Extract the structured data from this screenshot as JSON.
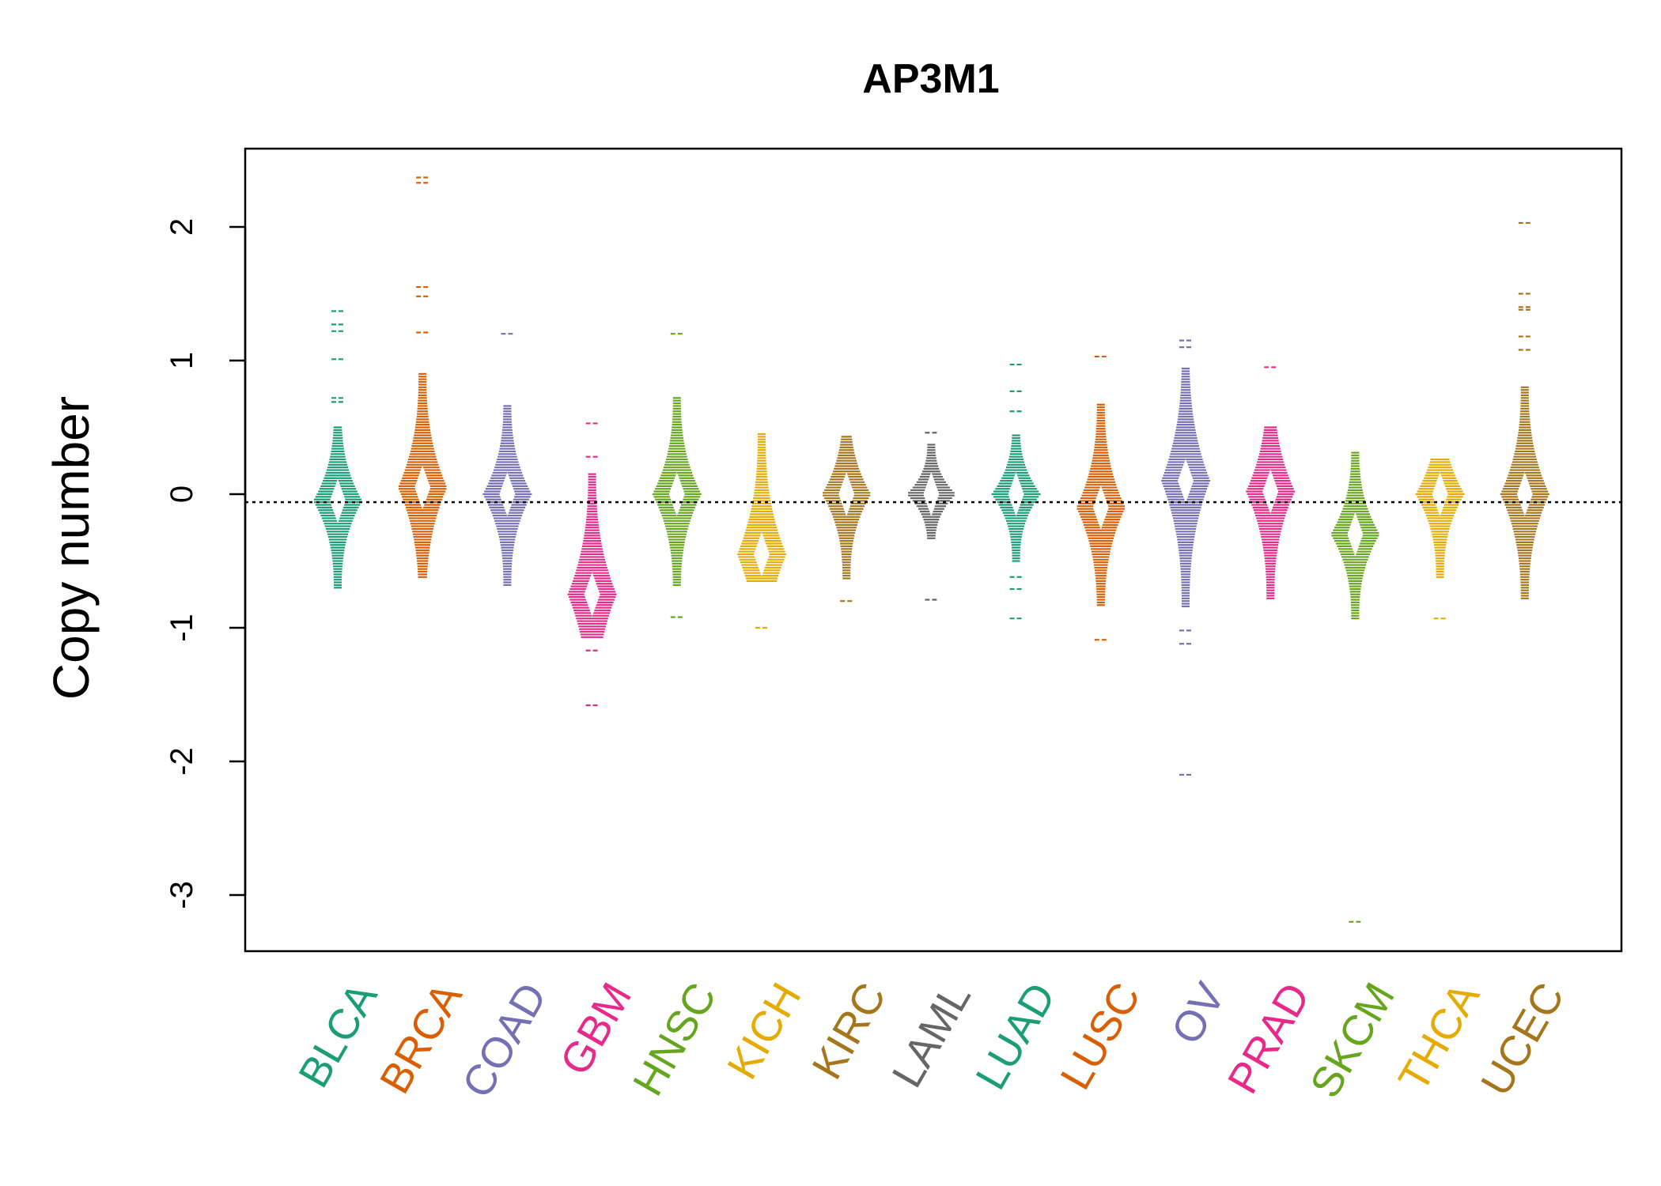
{
  "chart_data": {
    "type": "beeswarm",
    "title": "AP3M1",
    "ylabel": "Copy number",
    "ylim": [
      -3.4,
      2.6
    ],
    "yticks": [
      2,
      1,
      0,
      -1,
      -2,
      -3
    ],
    "reference_line": -0.06,
    "categories": [
      "BLCA",
      "BRCA",
      "COAD",
      "GBM",
      "HNSC",
      "KICH",
      "KIRC",
      "LAML",
      "LUAD",
      "LUSC",
      "OV",
      "PRAD",
      "SKCM",
      "THCA",
      "UCEC"
    ],
    "colors": [
      "#1b9e77",
      "#d95f02",
      "#7570b3",
      "#e7298a",
      "#66a61e",
      "#e6ab02",
      "#a6761d",
      "#666666",
      "#1b9e77",
      "#d95f02",
      "#7570b3",
      "#e7298a",
      "#66a61e",
      "#e6ab02",
      "#a6761d"
    ],
    "series": [
      {
        "name": "BLCA",
        "max": 1.37,
        "min": -0.75,
        "core_max": 0.5,
        "core_min": -0.7,
        "mode": -0.05,
        "outliers": [
          1.37,
          1.27,
          1.22,
          1.01,
          0.72,
          0.69
        ]
      },
      {
        "name": "BRCA",
        "max": 2.37,
        "min": -0.8,
        "core_max": 0.9,
        "core_min": -0.62,
        "mode": 0.05,
        "outliers": [
          2.37,
          2.33,
          1.55,
          1.48,
          1.21
        ]
      },
      {
        "name": "COAD",
        "max": 1.2,
        "min": -0.78,
        "core_max": 0.67,
        "core_min": -0.68,
        "mode": 0.0,
        "outliers": [
          1.2
        ]
      },
      {
        "name": "GBM",
        "max": 0.53,
        "min": -1.58,
        "core_max": 0.15,
        "core_min": -1.07,
        "mode": -0.75,
        "outliers": [
          0.53,
          0.28,
          -1.17,
          -1.58
        ]
      },
      {
        "name": "HNSC",
        "max": 1.2,
        "min": -0.92,
        "core_max": 0.72,
        "core_min": -0.68,
        "mode": 0.0,
        "outliers": [
          1.2,
          -0.92
        ]
      },
      {
        "name": "KICH",
        "max": 0.48,
        "min": -1.0,
        "core_max": 0.45,
        "core_min": -0.65,
        "mode": -0.45,
        "outliers": [
          -1.0
        ]
      },
      {
        "name": "KIRC",
        "max": 0.45,
        "min": -0.8,
        "core_max": 0.43,
        "core_min": -0.63,
        "mode": 0.0,
        "outliers": [
          -0.8
        ]
      },
      {
        "name": "LAML",
        "max": 0.46,
        "min": -0.79,
        "core_max": 0.38,
        "core_min": -0.33,
        "mode": 0.0,
        "outliers": [
          0.46,
          -0.79
        ]
      },
      {
        "name": "LUAD",
        "max": 0.97,
        "min": -0.93,
        "core_max": 0.45,
        "core_min": -0.5,
        "mode": 0.0,
        "outliers": [
          0.97,
          0.77,
          0.62,
          -0.62,
          -0.71,
          -0.93
        ]
      },
      {
        "name": "LUSC",
        "max": 1.03,
        "min": -1.09,
        "core_max": 0.68,
        "core_min": -0.83,
        "mode": -0.1,
        "outliers": [
          1.03,
          -1.09
        ]
      },
      {
        "name": "OV",
        "max": 1.15,
        "min": -2.1,
        "core_max": 0.95,
        "core_min": -0.84,
        "mode": 0.1,
        "outliers": [
          1.15,
          1.1,
          -1.02,
          -1.12,
          -2.1
        ]
      },
      {
        "name": "PRAD",
        "max": 0.95,
        "min": -0.8,
        "core_max": 0.5,
        "core_min": -0.78,
        "mode": 0.02,
        "outliers": [
          0.95
        ]
      },
      {
        "name": "SKCM",
        "max": 0.31,
        "min": -3.2,
        "core_max": 0.31,
        "core_min": -0.93,
        "mode": -0.3,
        "outliers": [
          -3.2
        ]
      },
      {
        "name": "THCA",
        "max": 0.27,
        "min": -0.93,
        "core_max": 0.27,
        "core_min": -0.62,
        "mode": 0.0,
        "outliers": [
          -0.93
        ]
      },
      {
        "name": "UCEC",
        "max": 2.03,
        "min": -0.78,
        "core_max": 0.8,
        "core_min": -0.78,
        "mode": 0.0,
        "outliers": [
          2.03,
          1.5,
          1.4,
          1.38,
          1.18,
          1.08
        ]
      }
    ]
  }
}
